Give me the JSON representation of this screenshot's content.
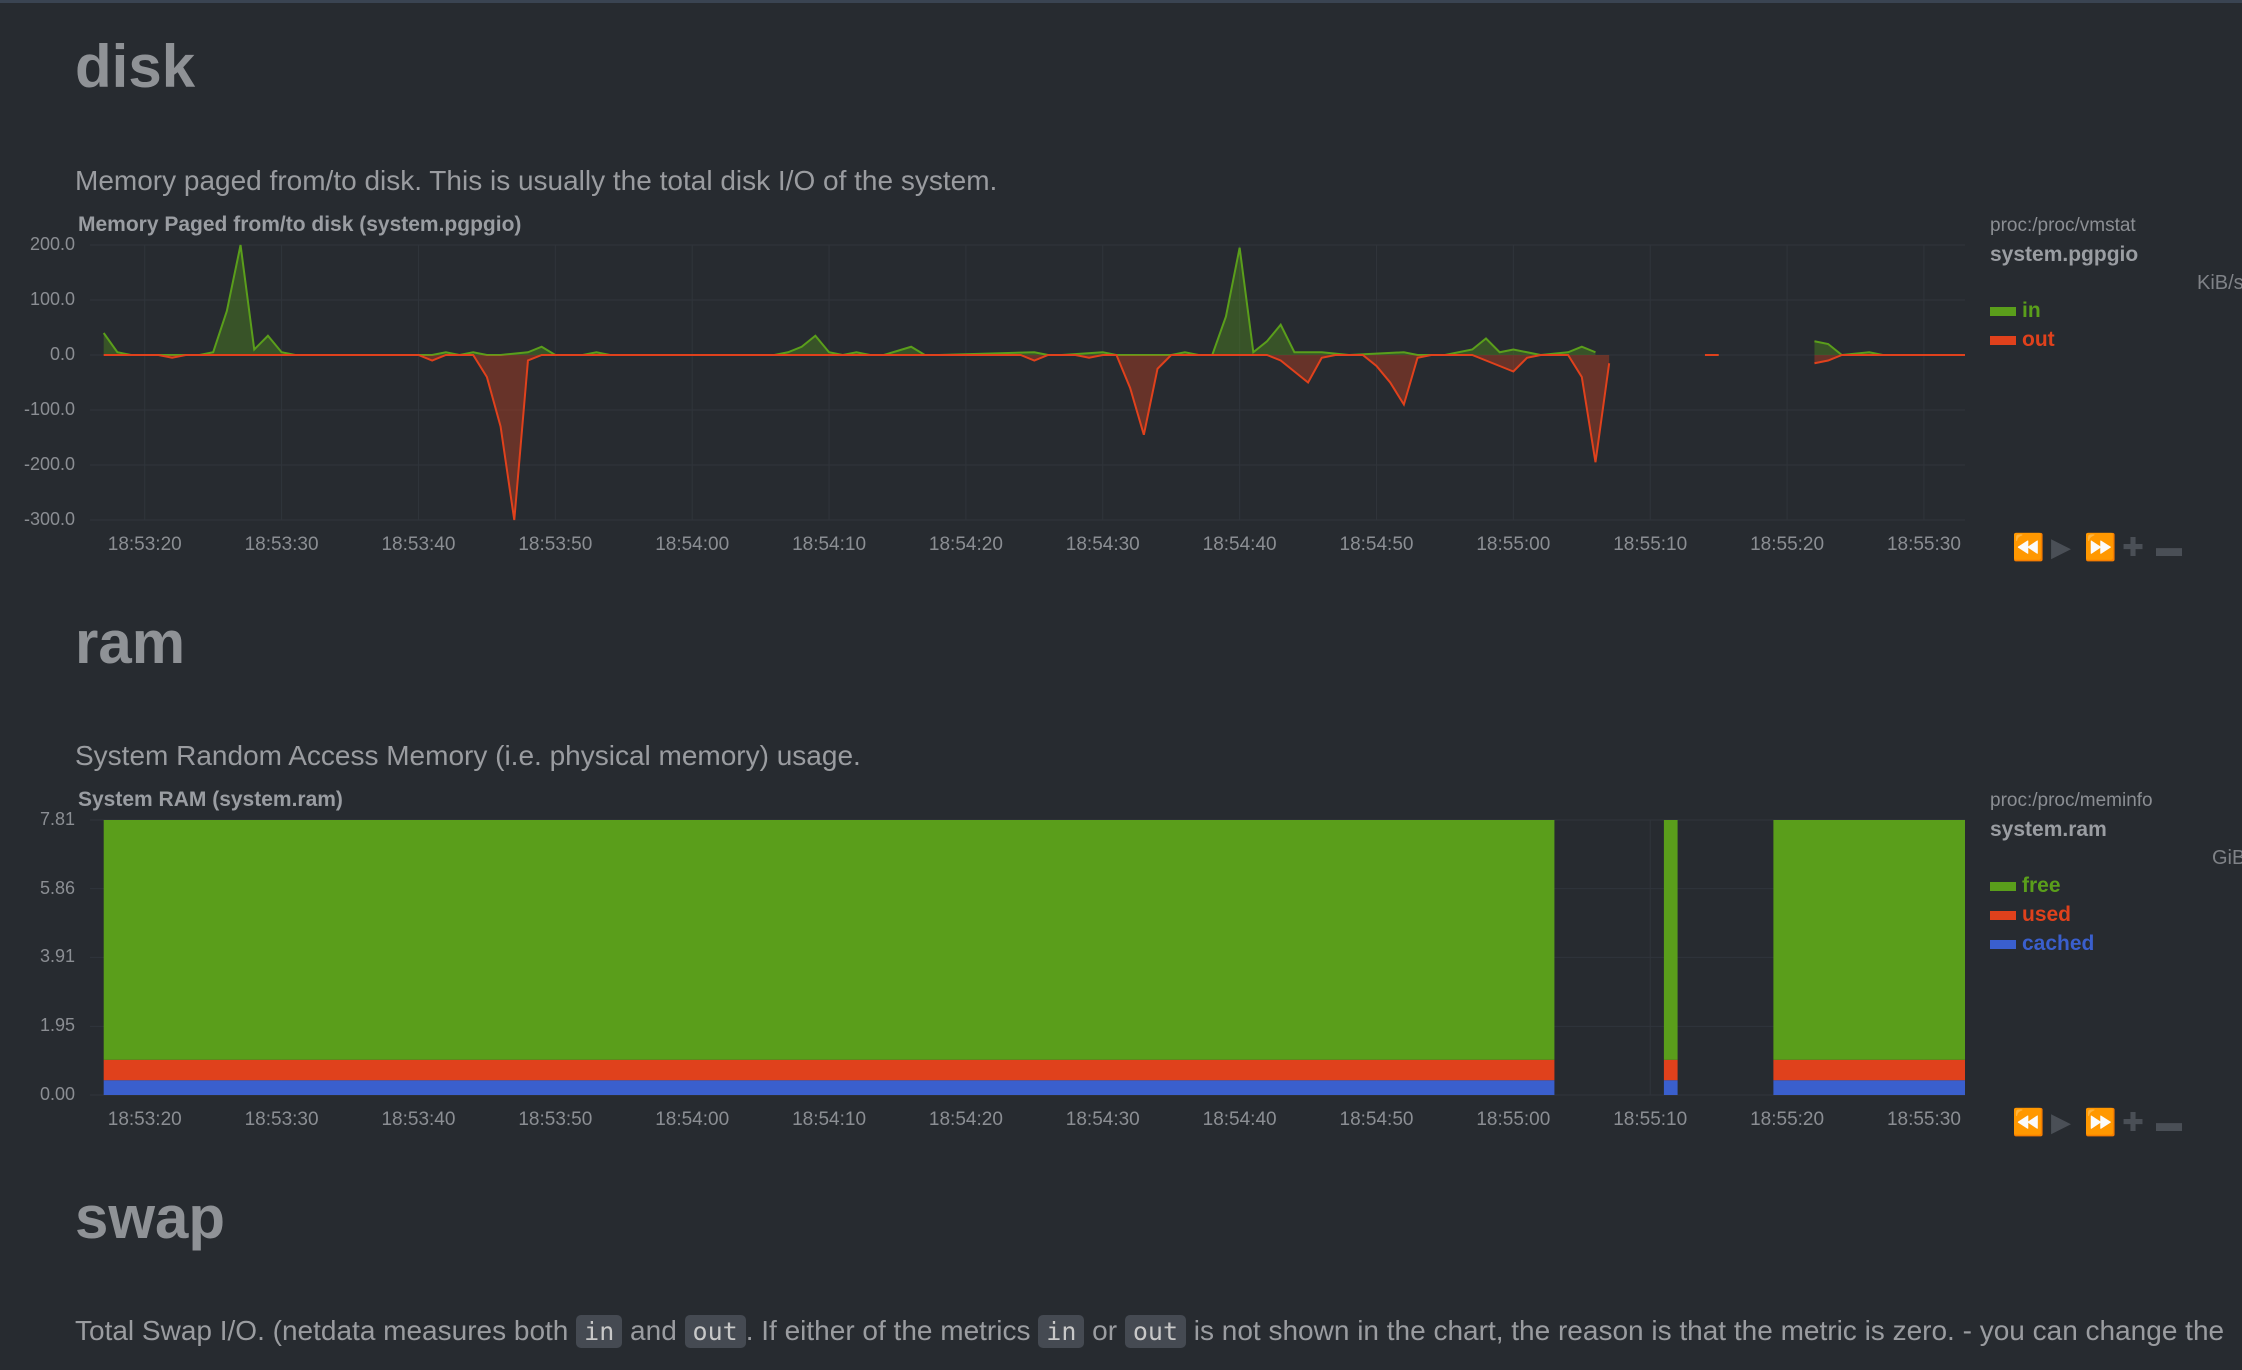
{
  "disk": {
    "title": "disk",
    "description": "Memory paged from/to disk. This is usually the total disk I/O of the system.",
    "chart_title": "Memory Paged from/to disk (system.pgpgio)",
    "source": "proc:/proc/vmstat",
    "context": "system.pgpgio",
    "units": "KiB/s",
    "legend": [
      {
        "label": "in",
        "color": "#5a9e1b"
      },
      {
        "label": "out",
        "color": "#e0411c"
      }
    ]
  },
  "ram": {
    "title": "ram",
    "description": "System Random Access Memory (i.e. physical memory) usage.",
    "chart_title": "System RAM (system.ram)",
    "source": "proc:/proc/meminfo",
    "context": "system.ram",
    "units": "GiB",
    "legend": [
      {
        "label": "free",
        "color": "#5a9e1b"
      },
      {
        "label": "used",
        "color": "#e0411c"
      },
      {
        "label": "cached",
        "color": "#3a5fcd"
      }
    ]
  },
  "swap": {
    "title": "swap",
    "desc_1": "Total Swap I/O. (netdata measures both ",
    "kw_in": "in",
    "desc_2": " and ",
    "kw_out": "out",
    "desc_3": ". If either of the metrics ",
    "desc_4": " or ",
    "desc_5": " is not shown in the chart, the reason is that the metric is zero. - you can change the"
  },
  "toolbar_icons": [
    "rewind-icon",
    "play-icon",
    "fast-forward-icon",
    "zoom-in-icon",
    "zoom-out-icon"
  ],
  "chart_data": [
    {
      "type": "area",
      "title": "Memory Paged from/to disk (system.pgpgio)",
      "ylim": [
        -300,
        200
      ],
      "yticks": [
        "200.0",
        "100.0",
        "0.0",
        "-100.0",
        "-200.0",
        "-300.0"
      ],
      "xticks": [
        "18:53:20",
        "18:53:30",
        "18:53:40",
        "18:53:50",
        "18:54:00",
        "18:54:10",
        "18:54:20",
        "18:54:30",
        "18:54:40",
        "18:54:50",
        "18:55:00",
        "18:55:10",
        "18:55:20",
        "18:55:30"
      ],
      "x_start_sec": 16,
      "x_end_sec": 153,
      "series": [
        {
          "name": "in",
          "color": "#5a9e1b",
          "points": [
            [
              17,
              40
            ],
            [
              18,
              5
            ],
            [
              19,
              0
            ],
            [
              21,
              0
            ],
            [
              22,
              0
            ],
            [
              24,
              0
            ],
            [
              25,
              5
            ],
            [
              26,
              80
            ],
            [
              27,
              200
            ],
            [
              28,
              10
            ],
            [
              29,
              35
            ],
            [
              30,
              5
            ],
            [
              31,
              0
            ],
            [
              40,
              0
            ],
            [
              41,
              0
            ],
            [
              42,
              5
            ],
            [
              43,
              0
            ],
            [
              44,
              5
            ],
            [
              45,
              0
            ],
            [
              46,
              0
            ],
            [
              48,
              5
            ],
            [
              49,
              15
            ],
            [
              50,
              0
            ],
            [
              52,
              0
            ],
            [
              53,
              5
            ],
            [
              54,
              0
            ],
            [
              62,
              0
            ],
            [
              66,
              0
            ],
            [
              67,
              5
            ],
            [
              68,
              15
            ],
            [
              69,
              35
            ],
            [
              70,
              5
            ],
            [
              71,
              0
            ],
            [
              72,
              5
            ],
            [
              73,
              0
            ],
            [
              74,
              0
            ],
            [
              76,
              15
            ],
            [
              77,
              0
            ],
            [
              78,
              0
            ],
            [
              85,
              5
            ],
            [
              86,
              0
            ],
            [
              87,
              0
            ],
            [
              90,
              5
            ],
            [
              91,
              0
            ],
            [
              92,
              0
            ],
            [
              95,
              0
            ],
            [
              96,
              5
            ],
            [
              97,
              0
            ],
            [
              98,
              0
            ],
            [
              99,
              70
            ],
            [
              100,
              195
            ],
            [
              101,
              5
            ],
            [
              102,
              25
            ],
            [
              103,
              55
            ],
            [
              104,
              5
            ],
            [
              105,
              5
            ],
            [
              106,
              5
            ],
            [
              108,
              0
            ],
            [
              112,
              5
            ],
            [
              113,
              0
            ],
            [
              115,
              0
            ],
            [
              117,
              10
            ],
            [
              118,
              30
            ],
            [
              119,
              5
            ],
            [
              120,
              10
            ],
            [
              121,
              5
            ],
            [
              122,
              0
            ],
            [
              124,
              5
            ],
            [
              125,
              15
            ],
            [
              126,
              5
            ]
          ]
        },
        {
          "name": "out",
          "color": "#e0411c",
          "points": [
            [
              17,
              0
            ],
            [
              21,
              0
            ],
            [
              22,
              -5
            ],
            [
              23,
              0
            ],
            [
              24,
              0
            ],
            [
              30,
              0
            ],
            [
              33,
              0
            ],
            [
              38,
              0
            ],
            [
              40,
              0
            ],
            [
              41,
              -10
            ],
            [
              42,
              0
            ],
            [
              43,
              0
            ],
            [
              44,
              0
            ],
            [
              45,
              -40
            ],
            [
              46,
              -130
            ],
            [
              47,
              -300
            ],
            [
              48,
              -10
            ],
            [
              49,
              0
            ],
            [
              50,
              0
            ],
            [
              61,
              0
            ],
            [
              63,
              0
            ],
            [
              65,
              0
            ],
            [
              66,
              0
            ],
            [
              69,
              0
            ],
            [
              71,
              0
            ],
            [
              72,
              0
            ],
            [
              74,
              0
            ],
            [
              75,
              0
            ],
            [
              77,
              0
            ],
            [
              78,
              0
            ],
            [
              80,
              0
            ],
            [
              81,
              0
            ],
            [
              82,
              0
            ],
            [
              84,
              0
            ],
            [
              85,
              -10
            ],
            [
              86,
              0
            ],
            [
              87,
              0
            ],
            [
              88,
              0
            ],
            [
              89,
              -5
            ],
            [
              90,
              0
            ],
            [
              91,
              0
            ],
            [
              92,
              -60
            ],
            [
              93,
              -145
            ],
            [
              94,
              -25
            ],
            [
              95,
              0
            ],
            [
              96,
              0
            ],
            [
              100,
              0
            ],
            [
              101,
              0
            ],
            [
              102,
              0
            ],
            [
              103,
              -10
            ],
            [
              104,
              -30
            ],
            [
              105,
              -50
            ],
            [
              106,
              -5
            ],
            [
              107,
              0
            ],
            [
              108,
              0
            ],
            [
              109,
              0
            ],
            [
              110,
              -20
            ],
            [
              111,
              -50
            ],
            [
              112,
              -90
            ],
            [
              113,
              -5
            ],
            [
              114,
              0
            ],
            [
              117,
              0
            ],
            [
              118,
              -10
            ],
            [
              119,
              -20
            ],
            [
              120,
              -30
            ],
            [
              121,
              -5
            ],
            [
              122,
              0
            ],
            [
              124,
              0
            ],
            [
              125,
              -40
            ],
            [
              126,
              -195
            ],
            [
              127,
              -15
            ]
          ]
        },
        {
          "name": "in",
          "color": "#5a9e1b",
          "points": [
            [
              134,
              0
            ],
            [
              135,
              0
            ]
          ]
        },
        {
          "name": "out",
          "color": "#e0411c",
          "points": [
            [
              134,
              0
            ],
            [
              135,
              0
            ]
          ]
        },
        {
          "name": "in",
          "color": "#5a9e1b",
          "points": [
            [
              142,
              25
            ],
            [
              143,
              20
            ],
            [
              144,
              0
            ],
            [
              146,
              5
            ],
            [
              147,
              0
            ],
            [
              153,
              0
            ]
          ]
        },
        {
          "name": "out",
          "color": "#e0411c",
          "points": [
            [
              142,
              -15
            ],
            [
              143,
              -10
            ],
            [
              144,
              0
            ],
            [
              153,
              0
            ]
          ]
        }
      ]
    },
    {
      "type": "area",
      "stacked": true,
      "title": "System RAM (system.ram)",
      "ylim": [
        0,
        7.81
      ],
      "yticks": [
        "7.81",
        "5.86",
        "3.91",
        "1.95",
        "0.00"
      ],
      "xticks": [
        "18:53:20",
        "18:53:30",
        "18:53:40",
        "18:53:50",
        "18:54:00",
        "18:54:10",
        "18:54:20",
        "18:54:30",
        "18:54:40",
        "18:54:50",
        "18:55:00",
        "18:55:10",
        "18:55:20",
        "18:55:30"
      ],
      "segments": [
        {
          "x": [
            17,
            123
          ],
          "cached": 0.42,
          "used": 0.58,
          "free": 6.81
        },
        {
          "x": [
            131,
            132
          ],
          "cached": 0.42,
          "used": 0.58,
          "free": 6.81
        },
        {
          "x": [
            139,
            153
          ],
          "cached": 0.42,
          "used": 0.58,
          "free": 6.81
        }
      ]
    }
  ]
}
